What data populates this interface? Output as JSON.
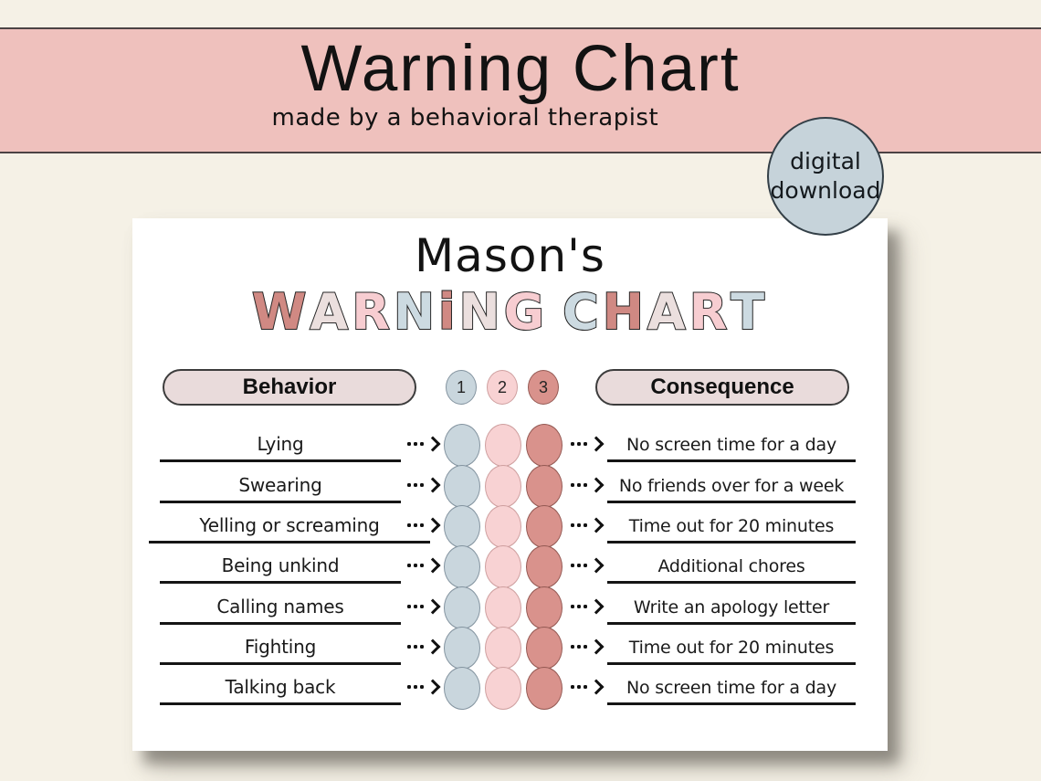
{
  "banner": {
    "title": "Warning Chart",
    "subtitle": "made by a behavioral therapist"
  },
  "badge": {
    "line1": "digital",
    "line2": "download"
  },
  "card": {
    "owner_title": "Mason's",
    "bubble_title": {
      "text": "WARNiNG CHART",
      "letters": [
        {
          "ch": "W",
          "color": "rose"
        },
        {
          "ch": "A",
          "color": "pale"
        },
        {
          "ch": "R",
          "color": "pink"
        },
        {
          "ch": "N",
          "color": "blue"
        },
        {
          "ch": "i",
          "color": "rose"
        },
        {
          "ch": "N",
          "color": "pale"
        },
        {
          "ch": "G",
          "color": "pink"
        },
        {
          "ch": " ",
          "color": "space"
        },
        {
          "ch": "C",
          "color": "blue"
        },
        {
          "ch": "H",
          "color": "rose"
        },
        {
          "ch": "A",
          "color": "pale"
        },
        {
          "ch": "R",
          "color": "pink"
        },
        {
          "ch": "T",
          "color": "blue"
        }
      ]
    },
    "headers": {
      "behavior": "Behavior",
      "consequence": "Consequence",
      "steps": [
        "1",
        "2",
        "3"
      ]
    },
    "rows": [
      {
        "behavior": "Lying",
        "consequence": "No screen time for a day"
      },
      {
        "behavior": "Swearing",
        "consequence": "No friends over for a week"
      },
      {
        "behavior": "Yelling or screaming",
        "consequence": "Time out for 20 minutes"
      },
      {
        "behavior": "Being unkind",
        "consequence": "Additional chores"
      },
      {
        "behavior": "Calling names",
        "consequence": "Write an apology letter"
      },
      {
        "behavior": "Fighting",
        "consequence": "Time out for 20 minutes"
      },
      {
        "behavior": "Talking back",
        "consequence": "No screen time for a day"
      }
    ]
  },
  "icons": {
    "dotted_arrow": "three-dots-with-right-chevron"
  },
  "colors": {
    "background": "#f5f1e6",
    "banner_bg": "#efc1bd",
    "badge_bg": "#c6d3da",
    "badge_border": "#333f47",
    "pill_bg": "#e9dbdb",
    "line_color": "#151515",
    "step1": "#c9d6dd",
    "step1_border": "#8494a0",
    "step2": "#f8d2d3",
    "step2_border": "#cfa0a0",
    "step3": "#d9928c",
    "step3_border": "#955a54",
    "letter_rose": "#d08983",
    "letter_pale": "#ebdfde",
    "letter_pink": "#f7cdd1",
    "letter_blue": "#ccdae1"
  }
}
